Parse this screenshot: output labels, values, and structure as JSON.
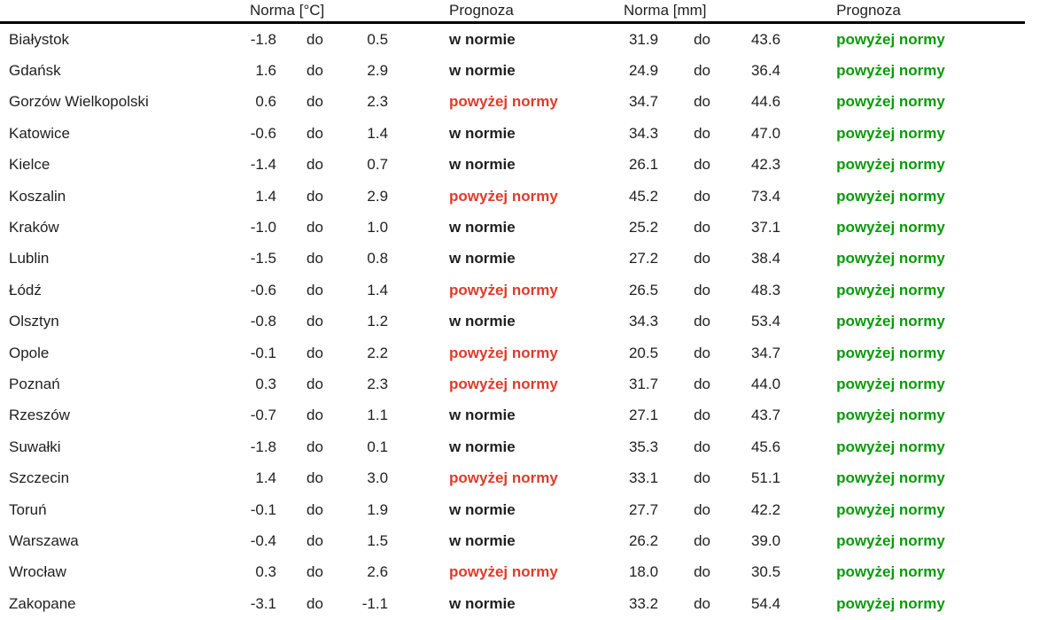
{
  "table": {
    "headers": {
      "city": "",
      "norma_c": "Norma [°C]",
      "prognoza_temp": "Prognoza",
      "norma_mm": "Norma [mm]",
      "prognoza_precip": "Prognoza"
    },
    "range_word": "do",
    "status_labels": {
      "in_norm": "w normie",
      "above_norm": "powyżej normy"
    },
    "colors": {
      "text": "#1f1f1f",
      "temp_above_norm": "#de3b2b",
      "precip_above_norm": "#0a9a0a",
      "header_rule": "#000000"
    },
    "rows": [
      {
        "city": "Białystok",
        "temp_min": "-1.8",
        "temp_max": "0.5",
        "temp_forecast": "w normie",
        "temp_status": "in-norm",
        "precip_min": "31.9",
        "precip_max": "43.6",
        "precip_forecast": "powyżej normy",
        "precip_status": "above-norm"
      },
      {
        "city": "Gdańsk",
        "temp_min": "1.6",
        "temp_max": "2.9",
        "temp_forecast": "w normie",
        "temp_status": "in-norm",
        "precip_min": "24.9",
        "precip_max": "36.4",
        "precip_forecast": "powyżej normy",
        "precip_status": "above-norm"
      },
      {
        "city": "Gorzów Wielkopolski",
        "temp_min": "0.6",
        "temp_max": "2.3",
        "temp_forecast": "powyżej normy",
        "temp_status": "above-norm",
        "precip_min": "34.7",
        "precip_max": "44.6",
        "precip_forecast": "powyżej normy",
        "precip_status": "above-norm"
      },
      {
        "city": "Katowice",
        "temp_min": "-0.6",
        "temp_max": "1.4",
        "temp_forecast": "w normie",
        "temp_status": "in-norm",
        "precip_min": "34.3",
        "precip_max": "47.0",
        "precip_forecast": "powyżej normy",
        "precip_status": "above-norm"
      },
      {
        "city": "Kielce",
        "temp_min": "-1.4",
        "temp_max": "0.7",
        "temp_forecast": "w normie",
        "temp_status": "in-norm",
        "precip_min": "26.1",
        "precip_max": "42.3",
        "precip_forecast": "powyżej normy",
        "precip_status": "above-norm"
      },
      {
        "city": "Koszalin",
        "temp_min": "1.4",
        "temp_max": "2.9",
        "temp_forecast": "powyżej normy",
        "temp_status": "above-norm",
        "precip_min": "45.2",
        "precip_max": "73.4",
        "precip_forecast": "powyżej normy",
        "precip_status": "above-norm"
      },
      {
        "city": "Kraków",
        "temp_min": "-1.0",
        "temp_max": "1.0",
        "temp_forecast": "w normie",
        "temp_status": "in-norm",
        "precip_min": "25.2",
        "precip_max": "37.1",
        "precip_forecast": "powyżej normy",
        "precip_status": "above-norm"
      },
      {
        "city": "Lublin",
        "temp_min": "-1.5",
        "temp_max": "0.8",
        "temp_forecast": "w normie",
        "temp_status": "in-norm",
        "precip_min": "27.2",
        "precip_max": "38.4",
        "precip_forecast": "powyżej normy",
        "precip_status": "above-norm"
      },
      {
        "city": "Łódź",
        "temp_min": "-0.6",
        "temp_max": "1.4",
        "temp_forecast": "powyżej normy",
        "temp_status": "above-norm",
        "precip_min": "26.5",
        "precip_max": "48.3",
        "precip_forecast": "powyżej normy",
        "precip_status": "above-norm"
      },
      {
        "city": "Olsztyn",
        "temp_min": "-0.8",
        "temp_max": "1.2",
        "temp_forecast": "w normie",
        "temp_status": "in-norm",
        "precip_min": "34.3",
        "precip_max": "53.4",
        "precip_forecast": "powyżej normy",
        "precip_status": "above-norm"
      },
      {
        "city": "Opole",
        "temp_min": "-0.1",
        "temp_max": "2.2",
        "temp_forecast": "powyżej normy",
        "temp_status": "above-norm",
        "precip_min": "20.5",
        "precip_max": "34.7",
        "precip_forecast": "powyżej normy",
        "precip_status": "above-norm"
      },
      {
        "city": "Poznań",
        "temp_min": "0.3",
        "temp_max": "2.3",
        "temp_forecast": "powyżej normy",
        "temp_status": "above-norm",
        "precip_min": "31.7",
        "precip_max": "44.0",
        "precip_forecast": "powyżej normy",
        "precip_status": "above-norm"
      },
      {
        "city": "Rzeszów",
        "temp_min": "-0.7",
        "temp_max": "1.1",
        "temp_forecast": "w normie",
        "temp_status": "in-norm",
        "precip_min": "27.1",
        "precip_max": "43.7",
        "precip_forecast": "powyżej normy",
        "precip_status": "above-norm"
      },
      {
        "city": "Suwałki",
        "temp_min": "-1.8",
        "temp_max": "0.1",
        "temp_forecast": "w normie",
        "temp_status": "in-norm",
        "precip_min": "35.3",
        "precip_max": "45.6",
        "precip_forecast": "powyżej normy",
        "precip_status": "above-norm"
      },
      {
        "city": "Szczecin",
        "temp_min": "1.4",
        "temp_max": "3.0",
        "temp_forecast": "powyżej normy",
        "temp_status": "above-norm",
        "precip_min": "33.1",
        "precip_max": "51.1",
        "precip_forecast": "powyżej normy",
        "precip_status": "above-norm"
      },
      {
        "city": "Toruń",
        "temp_min": "-0.1",
        "temp_max": "1.9",
        "temp_forecast": "w normie",
        "temp_status": "in-norm",
        "precip_min": "27.7",
        "precip_max": "42.2",
        "precip_forecast": "powyżej normy",
        "precip_status": "above-norm"
      },
      {
        "city": "Warszawa",
        "temp_min": "-0.4",
        "temp_max": "1.5",
        "temp_forecast": "w normie",
        "temp_status": "in-norm",
        "precip_min": "26.2",
        "precip_max": "39.0",
        "precip_forecast": "powyżej normy",
        "precip_status": "above-norm"
      },
      {
        "city": "Wrocław",
        "temp_min": "0.3",
        "temp_max": "2.6",
        "temp_forecast": "powyżej normy",
        "temp_status": "above-norm",
        "precip_min": "18.0",
        "precip_max": "30.5",
        "precip_forecast": "powyżej normy",
        "precip_status": "above-norm"
      },
      {
        "city": "Zakopane",
        "temp_min": "-3.1",
        "temp_max": "-1.1",
        "temp_forecast": "w normie",
        "temp_status": "in-norm",
        "precip_min": "33.2",
        "precip_max": "54.4",
        "precip_forecast": "powyżej normy",
        "precip_status": "above-norm"
      }
    ]
  }
}
